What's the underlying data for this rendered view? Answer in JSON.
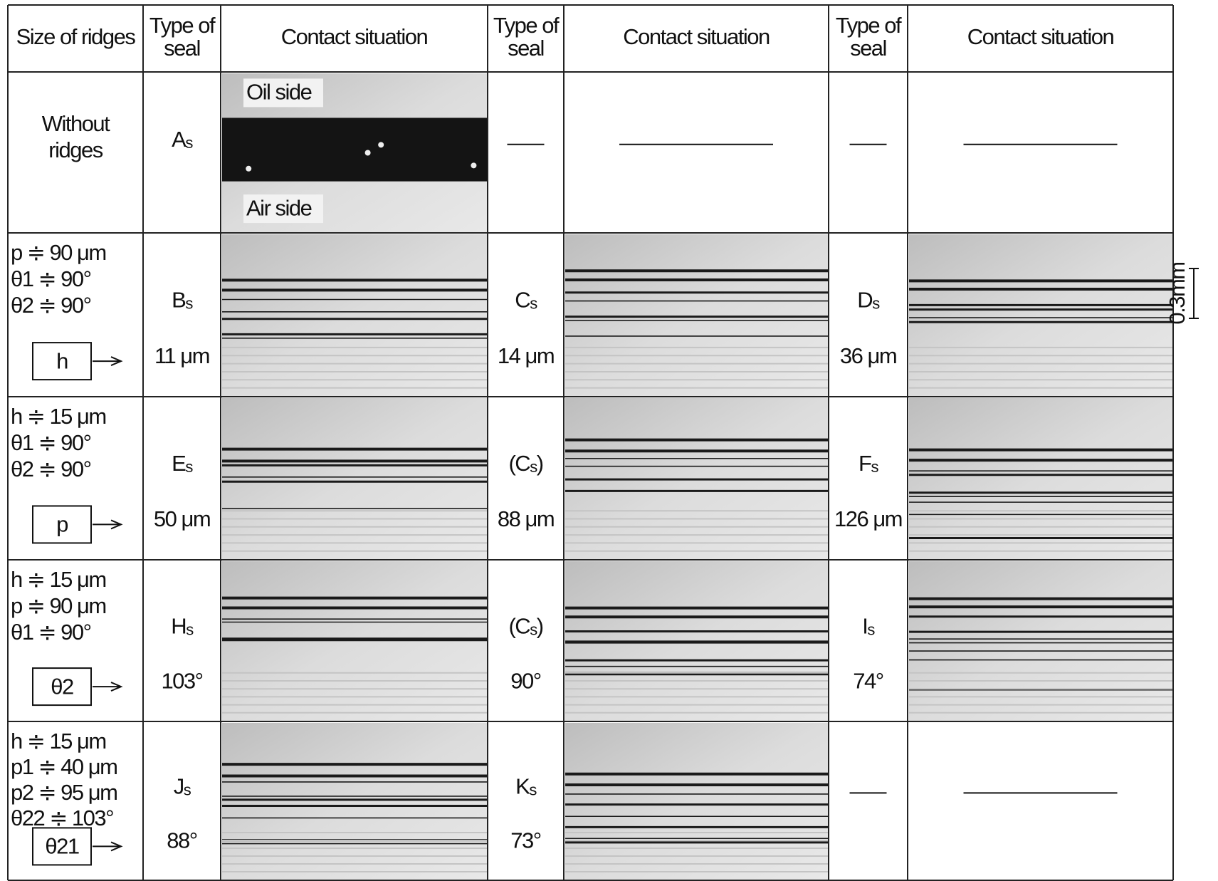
{
  "header": [
    [
      "Size of ridges"
    ],
    [
      "Type of",
      "seal"
    ],
    [
      "Contact situation"
    ],
    [
      "Type of",
      "seal"
    ],
    [
      "Contact situation"
    ],
    [
      "Type of",
      "seal"
    ],
    [
      "Contact situation"
    ]
  ],
  "scale_label": "0.3mm",
  "rows": [
    {
      "ridges": [
        "Without",
        "ridges"
      ],
      "box": null,
      "cells": [
        {
          "seal": [
            "A",
            "s"
          ],
          "value": null,
          "photo_labels": [
            "Oil side",
            "Air side"
          ]
        },
        null,
        null
      ]
    },
    {
      "ridges": [
        "p ≑ 90 μm",
        "θ1 ≑ 90°",
        "θ2 ≑ 90°"
      ],
      "box": "h",
      "cells": [
        {
          "seal": [
            "B",
            "s"
          ],
          "value": "11 μm"
        },
        {
          "seal": [
            "C",
            "s"
          ],
          "value": "14 μm"
        },
        {
          "seal": [
            "D",
            "s"
          ],
          "value": "36 μm"
        }
      ]
    },
    {
      "ridges": [
        "h ≑ 15 μm",
        "θ1 ≑ 90°",
        "θ2 ≑ 90°"
      ],
      "box": "p",
      "cells": [
        {
          "seal": [
            "E",
            "s"
          ],
          "value": "50 μm"
        },
        {
          "seal": [
            "(C",
            "s",
            ")"
          ],
          "value": "88 μm"
        },
        {
          "seal": [
            "F",
            "s"
          ],
          "value": "126 μm"
        }
      ]
    },
    {
      "ridges": [
        "h ≑ 15 μm",
        "p ≑ 90 μm",
        "θ1 ≑ 90°"
      ],
      "box": "θ2",
      "cells": [
        {
          "seal": [
            "H",
            "s"
          ],
          "value": "103°"
        },
        {
          "seal": [
            "(C",
            "s",
            ")"
          ],
          "value": "90°"
        },
        {
          "seal": [
            "I",
            "s"
          ],
          "value": "74°"
        }
      ]
    },
    {
      "ridges": [
        "h ≑ 15 μm",
        "p1 ≑ 40 μm",
        "p2 ≑ 95 μm",
        "θ22 ≑ 103°"
      ],
      "box": "θ21",
      "cells": [
        {
          "seal": [
            "J",
            "s"
          ],
          "value": "88°"
        },
        {
          "seal": [
            "K",
            "s"
          ],
          "value": "73°"
        },
        null
      ]
    }
  ]
}
